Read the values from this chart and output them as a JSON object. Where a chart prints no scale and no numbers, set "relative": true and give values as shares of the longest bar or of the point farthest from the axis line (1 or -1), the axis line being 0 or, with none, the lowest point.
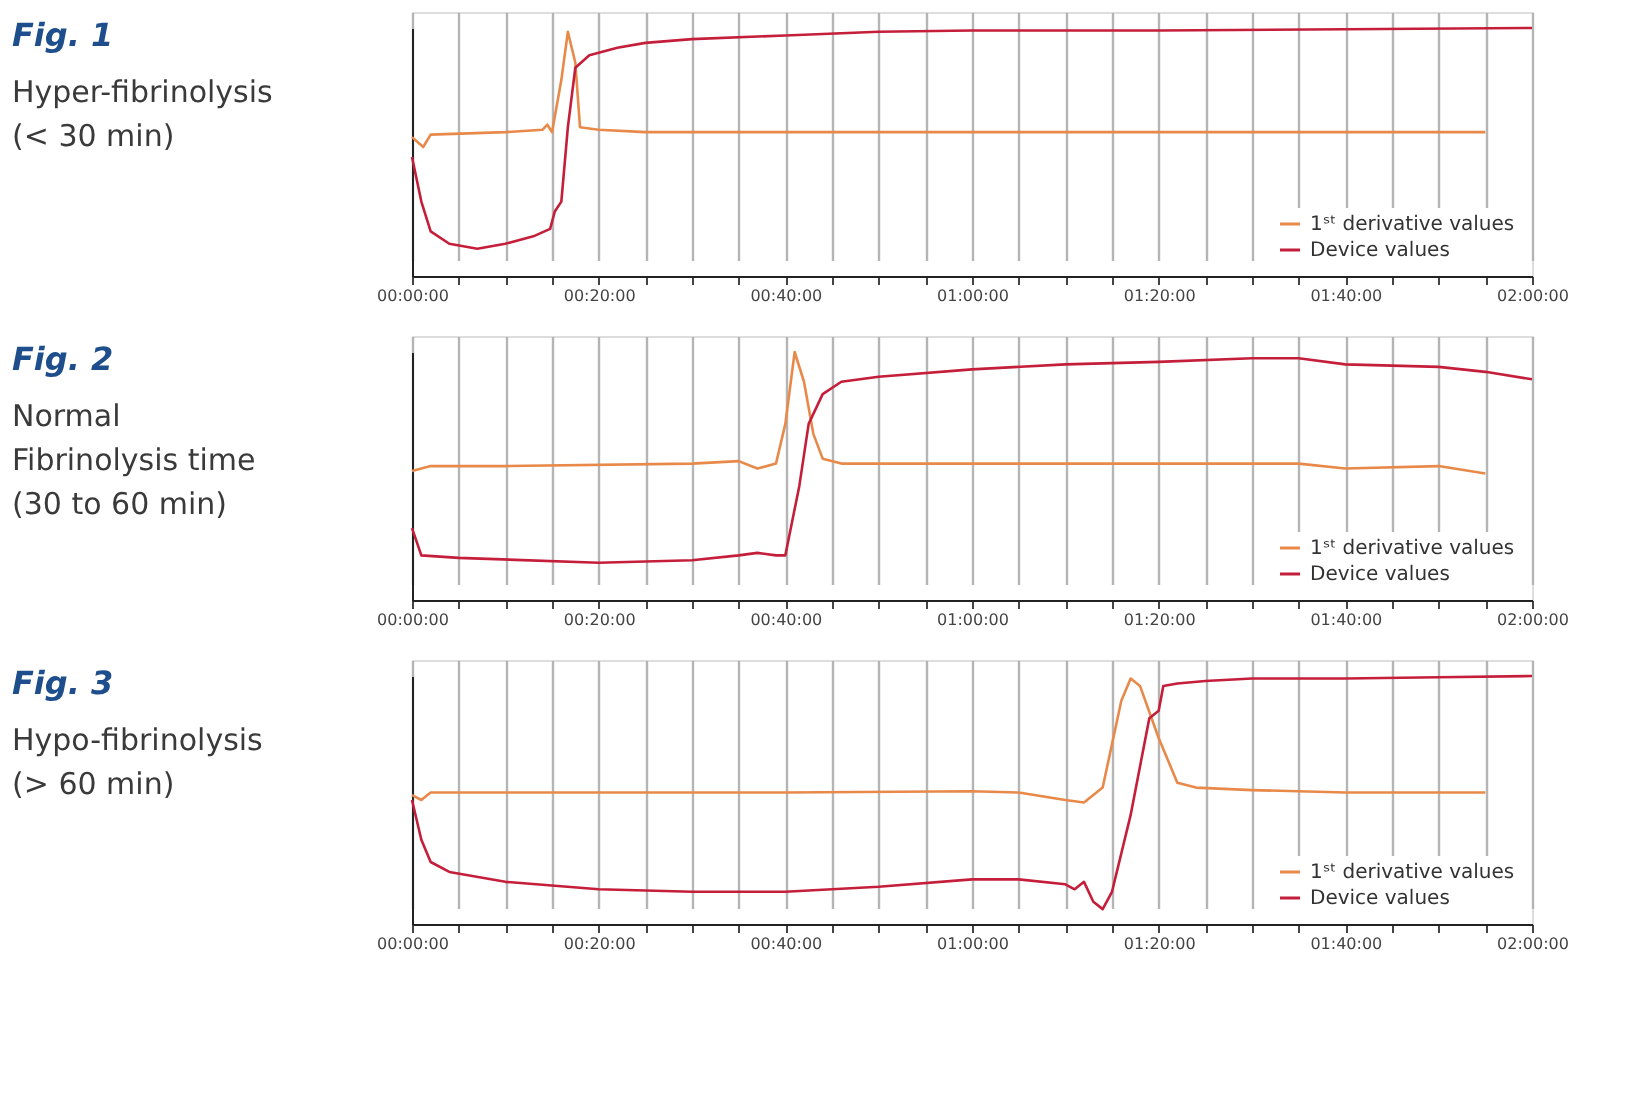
{
  "chart_data": [
    {
      "type": "line",
      "annotations": [
        "Fig. 1"
      ],
      "subtitle": "Hyper-fibrinolysis\n(< 30 min)",
      "relative": true,
      "xlim": [
        0,
        120
      ],
      "xticks": [
        {
          "value": 0,
          "label": "00:00:00"
        },
        {
          "value": 5,
          "label": null
        },
        {
          "value": 10,
          "label": null
        },
        {
          "value": 15,
          "label": null
        },
        {
          "value": 20,
          "label": "00:20:00"
        },
        {
          "value": 25,
          "label": null
        },
        {
          "value": 30,
          "label": null
        },
        {
          "value": 35,
          "label": null
        },
        {
          "value": 40,
          "label": "00:40:00"
        },
        {
          "value": 45,
          "label": null
        },
        {
          "value": 50,
          "label": null
        },
        {
          "value": 55,
          "label": null
        },
        {
          "value": 60,
          "label": "01:00:00"
        },
        {
          "value": 65,
          "label": null
        },
        {
          "value": 70,
          "label": null
        },
        {
          "value": 75,
          "label": null
        },
        {
          "value": 80,
          "label": "01:20:00"
        },
        {
          "value": 85,
          "label": null
        },
        {
          "value": 90,
          "label": null
        },
        {
          "value": 95,
          "label": null
        },
        {
          "value": 100,
          "label": "01:40:00"
        },
        {
          "value": 105,
          "label": null
        },
        {
          "value": 110,
          "label": null
        },
        {
          "value": 115,
          "label": null
        },
        {
          "value": 120,
          "label": "02:00:00"
        }
      ],
      "grid": "x",
      "legend": "bottom right",
      "tick_labels": "x",
      "series": [
        {
          "name": "1ˢᵗ derivative values",
          "color": "#e8894a",
          "x": [
            0,
            1.2,
            2,
            10,
            14,
            14.5,
            15,
            16,
            16.7,
            17.5,
            18,
            20,
            25,
            30,
            60,
            80,
            100,
            115
          ],
          "values": [
            0.56,
            0.52,
            0.57,
            0.58,
            0.59,
            0.61,
            0.58,
            0.79,
            0.985,
            0.86,
            0.6,
            0.59,
            0.58,
            0.58,
            0.58,
            0.58,
            0.58,
            0.58
          ]
        },
        {
          "name": "Device values",
          "color": "#c41e3a",
          "x": [
            0,
            1,
            2,
            4,
            7,
            10,
            13,
            14.8,
            15.3,
            16,
            16.7,
            17.5,
            19,
            22,
            25,
            30,
            40,
            50,
            60,
            80,
            100,
            120
          ],
          "values": [
            0.48,
            0.3,
            0.18,
            0.13,
            0.11,
            0.13,
            0.16,
            0.19,
            0.26,
            0.3,
            0.6,
            0.84,
            0.89,
            0.92,
            0.94,
            0.955,
            0.97,
            0.985,
            0.99,
            0.99,
            0.995,
            1.0
          ]
        }
      ]
    },
    {
      "type": "line",
      "annotations": [
        "Fig. 2"
      ],
      "subtitle": "Normal\nFibrinolysis time\n(30 to 60 min)",
      "relative": true,
      "xlim": [
        0,
        120
      ],
      "xticks": [
        {
          "value": 0,
          "label": "00:00:00"
        },
        {
          "value": 5,
          "label": null
        },
        {
          "value": 10,
          "label": null
        },
        {
          "value": 15,
          "label": null
        },
        {
          "value": 20,
          "label": "00:20:00"
        },
        {
          "value": 25,
          "label": null
        },
        {
          "value": 30,
          "label": null
        },
        {
          "value": 35,
          "label": null
        },
        {
          "value": 40,
          "label": "00:40:00"
        },
        {
          "value": 45,
          "label": null
        },
        {
          "value": 50,
          "label": null
        },
        {
          "value": 55,
          "label": null
        },
        {
          "value": 60,
          "label": "01:00:00"
        },
        {
          "value": 65,
          "label": null
        },
        {
          "value": 70,
          "label": null
        },
        {
          "value": 75,
          "label": null
        },
        {
          "value": 80,
          "label": "01:20:00"
        },
        {
          "value": 85,
          "label": null
        },
        {
          "value": 90,
          "label": null
        },
        {
          "value": 95,
          "label": null
        },
        {
          "value": 100,
          "label": "01:40:00"
        },
        {
          "value": 105,
          "label": null
        },
        {
          "value": 110,
          "label": null
        },
        {
          "value": 115,
          "label": null
        },
        {
          "value": 120,
          "label": "02:00:00"
        }
      ],
      "grid": "x",
      "legend": "bottom right",
      "tick_labels": "x",
      "series": [
        {
          "name": "1ˢᵗ derivative values",
          "color": "#e8894a",
          "x": [
            0,
            2,
            10,
            30,
            35,
            37,
            39,
            40,
            41,
            42,
            43,
            44,
            46,
            60,
            80,
            95,
            100,
            110,
            115
          ],
          "values": [
            0.52,
            0.54,
            0.54,
            0.55,
            0.56,
            0.53,
            0.55,
            0.71,
            1.0,
            0.88,
            0.67,
            0.57,
            0.55,
            0.55,
            0.55,
            0.55,
            0.53,
            0.54,
            0.51
          ]
        },
        {
          "name": "Device values",
          "color": "#c41e3a",
          "x": [
            0,
            1,
            5,
            20,
            30,
            35,
            37,
            39,
            40,
            41.5,
            42.5,
            44,
            46,
            50,
            60,
            70,
            80,
            90,
            95,
            100,
            110,
            115,
            120
          ],
          "values": [
            0.29,
            0.18,
            0.17,
            0.15,
            0.16,
            0.18,
            0.19,
            0.18,
            0.18,
            0.46,
            0.71,
            0.83,
            0.88,
            0.9,
            0.93,
            0.95,
            0.96,
            0.975,
            0.975,
            0.95,
            0.94,
            0.92,
            0.89
          ]
        }
      ]
    },
    {
      "type": "line",
      "annotations": [
        "Fig. 3"
      ],
      "subtitle": "Hypo-fibrinolysis\n(> 60 min)",
      "relative": true,
      "xlim": [
        0,
        120
      ],
      "xticks": [
        {
          "value": 0,
          "label": "00:00:00"
        },
        {
          "value": 5,
          "label": null
        },
        {
          "value": 10,
          "label": null
        },
        {
          "value": 15,
          "label": null
        },
        {
          "value": 20,
          "label": "00:20:00"
        },
        {
          "value": 25,
          "label": null
        },
        {
          "value": 30,
          "label": null
        },
        {
          "value": 35,
          "label": null
        },
        {
          "value": 40,
          "label": "00:40:00"
        },
        {
          "value": 45,
          "label": null
        },
        {
          "value": 50,
          "label": null
        },
        {
          "value": 55,
          "label": null
        },
        {
          "value": 60,
          "label": "01:00:00"
        },
        {
          "value": 65,
          "label": null
        },
        {
          "value": 70,
          "label": null
        },
        {
          "value": 75,
          "label": null
        },
        {
          "value": 80,
          "label": "01:20:00"
        },
        {
          "value": 85,
          "label": null
        },
        {
          "value": 90,
          "label": null
        },
        {
          "value": 95,
          "label": null
        },
        {
          "value": 100,
          "label": "01:40:00"
        },
        {
          "value": 105,
          "label": null
        },
        {
          "value": 110,
          "label": null
        },
        {
          "value": 115,
          "label": null
        },
        {
          "value": 120,
          "label": "02:00:00"
        }
      ],
      "grid": "x",
      "legend": "bottom right",
      "tick_labels": "x",
      "series": [
        {
          "name": "1ˢᵗ derivative values",
          "color": "#e8894a",
          "x": [
            0,
            1,
            2,
            20,
            40,
            60,
            65,
            70,
            72,
            74,
            76,
            77,
            78,
            80,
            82,
            84,
            90,
            100,
            110,
            115
          ],
          "values": [
            0.52,
            0.5,
            0.53,
            0.53,
            0.53,
            0.535,
            0.53,
            0.5,
            0.49,
            0.55,
            0.9,
            0.99,
            0.96,
            0.75,
            0.57,
            0.55,
            0.54,
            0.53,
            0.53,
            0.53
          ]
        },
        {
          "name": "Device values",
          "color": "#c41e3a",
          "x": [
            0,
            1,
            2,
            4,
            10,
            20,
            30,
            40,
            50,
            60,
            65,
            70,
            71,
            72,
            73,
            74,
            75,
            77,
            79,
            80,
            80.5,
            82,
            85,
            90,
            100,
            110,
            120
          ],
          "values": [
            0.5,
            0.34,
            0.25,
            0.21,
            0.17,
            0.14,
            0.13,
            0.13,
            0.15,
            0.18,
            0.18,
            0.16,
            0.14,
            0.17,
            0.09,
            0.06,
            0.13,
            0.44,
            0.83,
            0.86,
            0.96,
            0.97,
            0.98,
            0.99,
            0.99,
            0.995,
            1.0
          ]
        }
      ]
    }
  ]
}
